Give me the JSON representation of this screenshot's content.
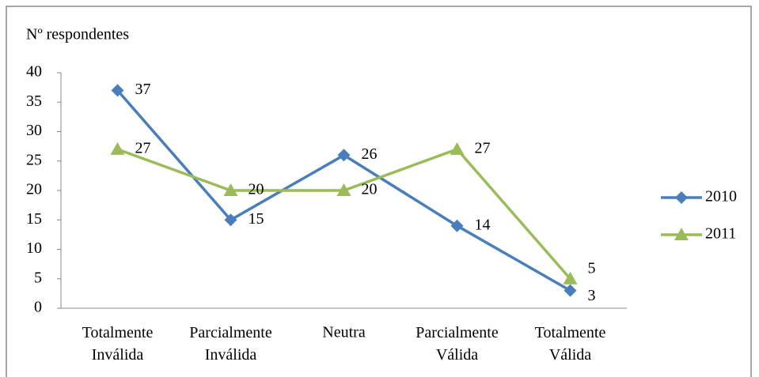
{
  "chart_data": {
    "type": "line",
    "y_label": "Nº respondentes",
    "categories": [
      "Totalmente Inválida",
      "Parcialmente Inválida",
      "Neutra",
      "Parcialmente Válida",
      "Totalmente Válida"
    ],
    "series": [
      {
        "name": "2010",
        "color": "#4a7ebb",
        "marker": "diamond",
        "values": [
          37,
          15,
          26,
          14,
          3
        ]
      },
      {
        "name": "2011",
        "color": "#9bbb59",
        "marker": "triangle",
        "values": [
          27,
          20,
          20,
          27,
          5
        ]
      }
    ],
    "ylim": [
      0,
      40
    ],
    "yticks": [
      0,
      5,
      10,
      15,
      20,
      25,
      30,
      35,
      40
    ],
    "grid": false,
    "legend": "right"
  }
}
